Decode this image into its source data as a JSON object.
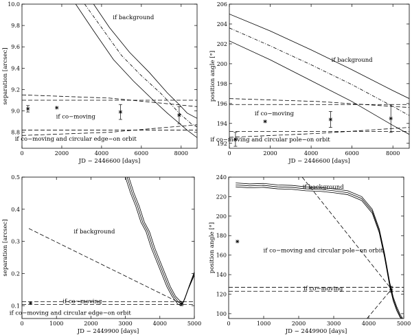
{
  "chart_data": [
    {
      "type": "line",
      "panel": "top-left",
      "xlabel": "JD − 2446600 [days]",
      "ylabel": "separation [arcsec]",
      "xlim": [
        0,
        8800
      ],
      "ylim": [
        8.65,
        10.0
      ],
      "xticks": [
        0,
        2000,
        4000,
        6000,
        8000
      ],
      "yticks": [
        8.8,
        9.0,
        9.2,
        9.4,
        9.6,
        9.8,
        10.0
      ],
      "ytick_labels": [
        "8.8",
        "9.0",
        "9.2",
        "9.4",
        "9.6",
        "9.8",
        "10.0"
      ],
      "annotations": [
        {
          "text": "if background",
          "x": 5600,
          "y": 9.86
        },
        {
          "text": "if co−moving",
          "x": 2700,
          "y": 8.93
        },
        {
          "text": "if co−moving and circular edge−on orbit",
          "x": 2700,
          "y": 8.72
        }
      ],
      "series": [
        {
          "name": "background",
          "style": "dashdot",
          "x": [
            3150,
            4000,
            5000,
            6000,
            7000,
            7600,
            7900,
            8200,
            8500,
            8800
          ],
          "y": [
            10.0,
            9.78,
            9.52,
            9.33,
            9.16,
            9.04,
            8.98,
            8.93,
            8.88,
            8.85
          ]
        },
        {
          "name": "background upper",
          "style": "solid",
          "x": [
            3600,
            4400,
            5400,
            6400,
            7300,
            7900,
            8300,
            8800
          ],
          "y": [
            10.0,
            9.78,
            9.55,
            9.36,
            9.17,
            9.06,
            8.98,
            8.93
          ]
        },
        {
          "name": "background lower",
          "style": "solid",
          "x": [
            2700,
            3600,
            4600,
            5600,
            6600,
            7300,
            7800,
            8300,
            8800
          ],
          "y": [
            10.0,
            9.75,
            9.48,
            9.28,
            9.1,
            8.98,
            8.9,
            8.82,
            8.75
          ]
        },
        {
          "name": "co-moving upper",
          "style": "dashed",
          "x": [
            0,
            8800
          ],
          "y": [
            9.1,
            9.1
          ]
        },
        {
          "name": "co-moving lower",
          "style": "dashed",
          "x": [
            0,
            8800
          ],
          "y": [
            8.82,
            8.82
          ]
        },
        {
          "name": "edge-on orbit upper",
          "style": "dashed",
          "x": [
            0,
            4400,
            8800
          ],
          "y": [
            9.15,
            9.12,
            9.04
          ]
        },
        {
          "name": "edge-on orbit lower",
          "style": "dashed",
          "x": [
            0,
            4400,
            8800
          ],
          "y": [
            8.77,
            8.8,
            8.87
          ]
        }
      ],
      "points": [
        {
          "x": 300,
          "y": 9.02,
          "err": 0.03
        },
        {
          "x": 1750,
          "y": 9.03,
          "err": 0.0
        },
        {
          "x": 4950,
          "y": 8.99,
          "err": 0.07
        },
        {
          "x": 7900,
          "y": 8.96,
          "err": 0.08
        }
      ]
    },
    {
      "type": "line",
      "panel": "top-right",
      "xlabel": "JD − 2446600 [days]",
      "ylabel": "position angle [°]",
      "xlim": [
        0,
        8800
      ],
      "ylim": [
        191.5,
        206.0
      ],
      "xticks": [
        0,
        2000,
        4000,
        6000,
        8000
      ],
      "yticks": [
        192,
        194,
        196,
        198,
        200,
        202,
        204,
        206
      ],
      "ytick_labels": [
        "192",
        "194",
        "196",
        "198",
        "200",
        "202",
        "204",
        "206"
      ],
      "annotations": [
        {
          "text": "if background",
          "x": 6000,
          "y": 200.2
        },
        {
          "text": "if co−moving",
          "x": 2200,
          "y": 194.8
        },
        {
          "text": "if co−moving and circular pole−on orbit",
          "x": 2000,
          "y": 192.2
        }
      ],
      "series": [
        {
          "name": "background",
          "style": "dashdot",
          "x": [
            0,
            2000,
            4000,
            6000,
            8000,
            8800
          ],
          "y": [
            203.6,
            201.8,
            199.9,
            197.9,
            195.7,
            194.8
          ]
        },
        {
          "name": "background upper",
          "style": "solid",
          "x": [
            0,
            2000,
            4000,
            6000,
            8000,
            8800
          ],
          "y": [
            205.0,
            203.3,
            201.4,
            199.4,
            197.3,
            196.5
          ]
        },
        {
          "name": "background lower",
          "style": "solid",
          "x": [
            0,
            2000,
            4000,
            6000,
            8000,
            8800
          ],
          "y": [
            202.3,
            200.4,
            198.3,
            196.2,
            193.8,
            192.9
          ]
        },
        {
          "name": "co-moving upper",
          "style": "dashed",
          "x": [
            0,
            8800
          ],
          "y": [
            195.9,
            195.9
          ]
        },
        {
          "name": "co-moving lower",
          "style": "dashed",
          "x": [
            0,
            8800
          ],
          "y": [
            193.2,
            193.2
          ]
        },
        {
          "name": "pole-on orbit upper",
          "style": "dashed",
          "x": [
            0,
            4400,
            8800
          ],
          "y": [
            196.5,
            196.2,
            195.6
          ]
        },
        {
          "name": "pole-on orbit lower",
          "style": "dashed",
          "x": [
            0,
            4400,
            8800
          ],
          "y": [
            192.6,
            193.0,
            193.6
          ]
        }
      ],
      "points": [
        {
          "x": 300,
          "y": 192.4,
          "err": 0.7
        },
        {
          "x": 1750,
          "y": 194.2,
          "err": 0.0
        },
        {
          "x": 4950,
          "y": 194.4,
          "err": 0.8
        },
        {
          "x": 7900,
          "y": 194.5,
          "err": 1.4
        }
      ]
    },
    {
      "type": "line",
      "panel": "bottom-left",
      "xlabel": "JD − 2449900 [days]",
      "ylabel": "separation [arcsec]",
      "xlim": [
        0,
        5000
      ],
      "ylim": [
        0.06,
        0.5
      ],
      "xticks": [
        0,
        1000,
        2000,
        3000,
        4000,
        5000
      ],
      "yticks": [
        0.1,
        0.2,
        0.3,
        0.4,
        0.5
      ],
      "ytick_labels": [
        "0.1",
        "0.2",
        "0.3",
        "0.4",
        "0.5"
      ],
      "annotations": [
        {
          "text": "if background",
          "x": 2100,
          "y": 0.325
        },
        {
          "text": "if co−moving",
          "x": 1750,
          "y": 0.108
        },
        {
          "text": "if co−moving and circular edge−on orbit",
          "x": 1400,
          "y": 0.072
        }
      ],
      "series": [
        {
          "name": "background",
          "style": "solid",
          "x": [
            3050,
            3200,
            3350,
            3500,
            3650,
            3800,
            3950,
            4100,
            4250,
            4400,
            4550,
            4650,
            4750,
            4850,
            5000
          ],
          "y": [
            0.5,
            0.45,
            0.41,
            0.36,
            0.33,
            0.28,
            0.24,
            0.2,
            0.16,
            0.13,
            0.11,
            0.105,
            0.13,
            0.16,
            0.2
          ]
        },
        {
          "name": "background upper",
          "style": "solid",
          "x": [
            3100,
            3250,
            3400,
            3550,
            3700,
            3850,
            4000,
            4150,
            4300,
            4450,
            4580,
            4680,
            4780,
            4880,
            5000
          ],
          "y": [
            0.5,
            0.45,
            0.41,
            0.36,
            0.33,
            0.28,
            0.24,
            0.2,
            0.16,
            0.13,
            0.115,
            0.11,
            0.14,
            0.17,
            0.205
          ]
        },
        {
          "name": "background lower",
          "style": "solid",
          "x": [
            3000,
            3150,
            3300,
            3450,
            3600,
            3750,
            3900,
            4050,
            4200,
            4350,
            4520,
            4620,
            4720,
            4820,
            5000
          ],
          "y": [
            0.5,
            0.45,
            0.41,
            0.36,
            0.33,
            0.28,
            0.24,
            0.2,
            0.16,
            0.13,
            0.105,
            0.1,
            0.12,
            0.15,
            0.195
          ]
        },
        {
          "name": "edge-on orbit",
          "style": "dashed",
          "x": [
            200,
            4650
          ],
          "y": [
            0.34,
            0.105
          ]
        },
        {
          "name": "co-moving upper",
          "style": "dashed",
          "x": [
            0,
            5000
          ],
          "y": [
            0.112,
            0.112
          ]
        },
        {
          "name": "co-moving lower",
          "style": "dashed",
          "x": [
            0,
            5000
          ],
          "y": [
            0.104,
            0.104
          ]
        }
      ],
      "points": [
        {
          "x": 250,
          "y": 0.108,
          "err": 0.0
        },
        {
          "x": 4630,
          "y": 0.106,
          "err": 0.006
        }
      ]
    },
    {
      "type": "line",
      "panel": "bottom-right",
      "xlabel": "JD − 2449900 [days]",
      "ylabel": "position angle [°]",
      "xlim": [
        0,
        5000
      ],
      "ylim": [
        95,
        240
      ],
      "xticks": [
        0,
        1000,
        2000,
        3000,
        4000,
        5000
      ],
      "yticks": [
        100,
        120,
        140,
        160,
        180,
        200,
        220,
        240
      ],
      "ytick_labels": [
        "100",
        "120",
        "140",
        "160",
        "180",
        "200",
        "220",
        "240"
      ],
      "annotations": [
        {
          "text": "if background",
          "x": 2700,
          "y": 228
        },
        {
          "text": "if co−moving and circular pole−on orbit",
          "x": 2700,
          "y": 163
        },
        {
          "text": "if co−moving",
          "x": 2700,
          "y": 124
        }
      ],
      "series": [
        {
          "name": "background",
          "style": "solid",
          "x": [
            200,
            600,
            1000,
            1400,
            1800,
            2200,
            2600,
            3000,
            3400,
            3800,
            4100,
            4300,
            4450,
            4600,
            4700,
            4800,
            4900,
            4950
          ],
          "y": [
            232,
            231,
            231.5,
            230,
            229.5,
            228,
            227.5,
            226,
            224,
            218,
            205,
            185,
            160,
            130,
            115,
            105,
            97,
            95
          ]
        },
        {
          "name": "background upper",
          "style": "solid",
          "x": [
            200,
            600,
            1000,
            1400,
            1800,
            2200,
            2600,
            3000,
            3400,
            3800,
            4100,
            4300,
            4450,
            4600,
            4700,
            4800,
            4900,
            4970
          ],
          "y": [
            234,
            233,
            233.5,
            232,
            231.5,
            230,
            229.5,
            228,
            226,
            220,
            207,
            187,
            162,
            132,
            117,
            107,
            99,
            95
          ]
        },
        {
          "name": "background lower",
          "style": "solid",
          "x": [
            200,
            600,
            1000,
            1400,
            1800,
            2200,
            2600,
            3000,
            3400,
            3800,
            4100,
            4300,
            4450,
            4600,
            4700,
            4800,
            4900,
            4930
          ],
          "y": [
            230,
            229,
            229.5,
            228,
            227.5,
            226,
            225.5,
            224,
            222,
            216,
            203,
            183,
            158,
            128,
            113,
            103,
            96,
            95
          ]
        },
        {
          "name": "pole-on orbit upper",
          "style": "dashed",
          "x": [
            2100,
            4650
          ],
          "y": [
            240,
            125
          ]
        },
        {
          "name": "pole-on orbit lower",
          "style": "dashed",
          "x": [
            3950,
            4650
          ],
          "y": [
            95,
            125
          ]
        },
        {
          "name": "co-moving upper",
          "style": "dashed",
          "x": [
            0,
            5000
          ],
          "y": [
            127,
            127
          ]
        },
        {
          "name": "co-moving lower",
          "style": "dashed",
          "x": [
            0,
            5000
          ],
          "y": [
            123,
            123
          ]
        }
      ],
      "points": [
        {
          "x": 250,
          "y": 174,
          "err": 0.0
        },
        {
          "x": 4640,
          "y": 125,
          "err": 3
        }
      ]
    }
  ]
}
